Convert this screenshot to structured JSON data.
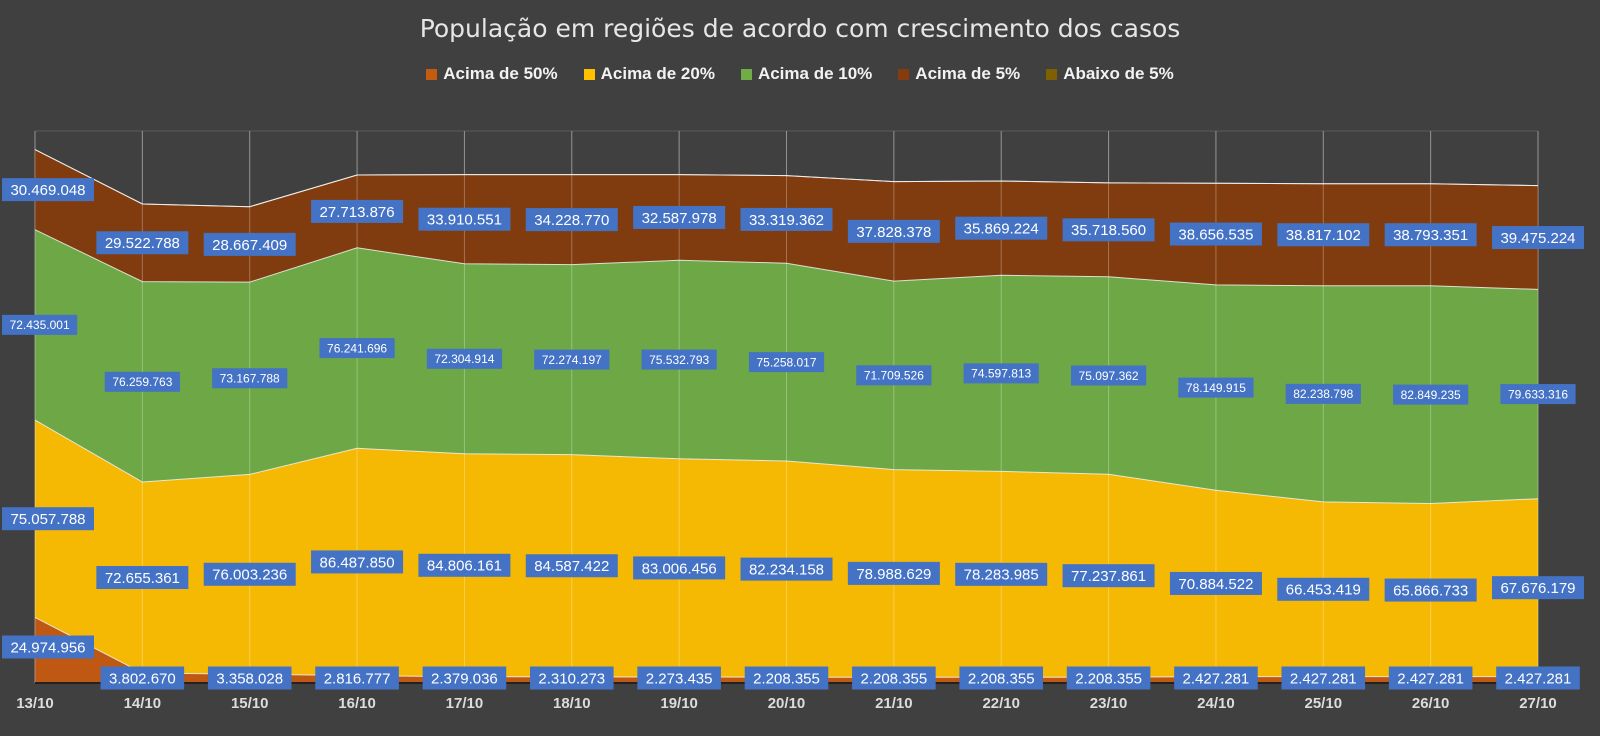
{
  "chart_data": {
    "type": "area",
    "stacked": true,
    "title": "População em regiões de acordo com crescimento dos casos",
    "legend_position": "top",
    "categories": [
      "13/10",
      "14/10",
      "15/10",
      "16/10",
      "17/10",
      "18/10",
      "19/10",
      "20/10",
      "21/10",
      "22/10",
      "23/10",
      "24/10",
      "25/10",
      "26/10",
      "27/10"
    ],
    "series": [
      {
        "name": "Acima de 50%",
        "color": "#c55a11",
        "values": [
          24974956,
          3802670,
          3358028,
          2816777,
          2379036,
          2310273,
          2273435,
          2208355,
          2208355,
          2208355,
          2208355,
          2427281,
          2427281,
          2427281,
          2427281
        ],
        "labels": [
          "24.974.956",
          "3.802.670",
          "3.358.028",
          "2.816.777",
          "2.379.036",
          "2.310.273",
          "2.273.435",
          "2.208.355",
          "2.208.355",
          "2.208.355",
          "2.208.355",
          "2.427.281",
          "2.427.281",
          "2.427.281",
          "2.427.281"
        ]
      },
      {
        "name": "Acima de 20%",
        "color": "#ffc000",
        "values": [
          75057788,
          72655361,
          76003236,
          86487850,
          84806161,
          84587422,
          83006456,
          82234158,
          78988629,
          78283985,
          77237861,
          70884522,
          66453419,
          65866733,
          67676179
        ],
        "labels": [
          "75.057.788",
          "72.655.361",
          "76.003.236",
          "86.487.850",
          "84.806.161",
          "84.587.422",
          "83.006.456",
          "82.234.158",
          "78.988.629",
          "78.283.985",
          "77.237.861",
          "70.884.522",
          "66.453.419",
          "65.866.733",
          "67.676.179"
        ]
      },
      {
        "name": "Acima de 10%",
        "color": "#70ad47",
        "values": [
          72435001,
          76259763,
          73167788,
          76241696,
          72304914,
          72274197,
          75532793,
          75258017,
          71709526,
          74597813,
          75097362,
          78149915,
          82238798,
          82849235,
          79633316
        ],
        "labels": [
          "72.435.001",
          "76.259.763",
          "73.167.788",
          "76.241.696",
          "72.304.914",
          "72.274.197",
          "75.532.793",
          "75.258.017",
          "71.709.526",
          "74.597.813",
          "75.097.362",
          "78.149.915",
          "82.238.798",
          "82.849.235",
          "79.633.316"
        ]
      },
      {
        "name": "Acima de 5%",
        "color": "#843c0c",
        "values": [
          30469048,
          29522788,
          28667409,
          27713876,
          33910551,
          34228770,
          32587978,
          33319362,
          37828378,
          35869224,
          35718560,
          38656535,
          38817102,
          38793351,
          39475224
        ],
        "labels": [
          "30.469.048",
          "29.522.788",
          "28.667.409",
          "27.713.876",
          "33.910.551",
          "34.228.770",
          "32.587.978",
          "33.319.362",
          "37.828.378",
          "35.869.224",
          "35.718.560",
          "38.656.535",
          "38.817.102",
          "38.793.351",
          "39.475.224"
        ]
      },
      {
        "name": "Abaixo de 5%",
        "color": "#7f6000",
        "values": [
          0,
          0,
          0,
          0,
          0,
          0,
          0,
          0,
          0,
          0,
          0,
          0,
          0,
          0,
          0
        ],
        "labels": []
      }
    ]
  }
}
